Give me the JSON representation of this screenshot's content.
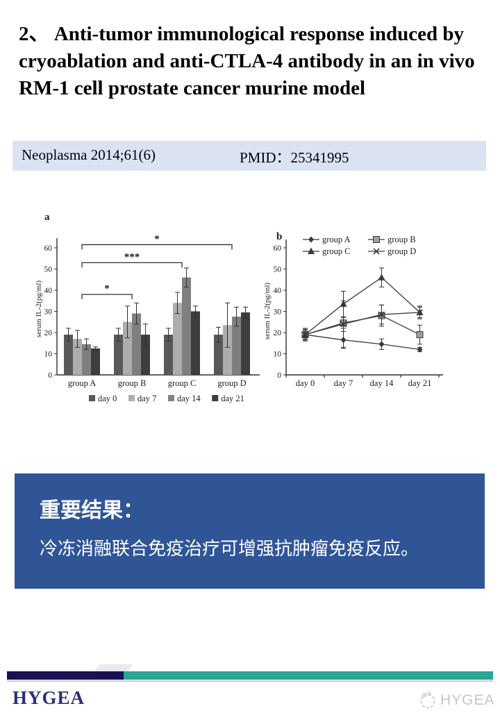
{
  "title": "2、 Anti-tumor immunological response induced by cryoablation and anti-CTLA-4 antibody in an in vivo RM-1 cell prostate cancer murine model",
  "banner": {
    "journal": "Neoplasma 2014;61(6)",
    "pmid": "PMID：25341995"
  },
  "results": {
    "heading": "重要结果：",
    "body": "冷冻消融联合免疫治疗可增强抗肿瘤免疫反应。"
  },
  "footer": {
    "logo": "HYGEA",
    "watermark": "HYGEA"
  },
  "colors": {
    "banner_bg": "#dbe3f3",
    "results_bg": "#2f5597",
    "footer_navy": "#181254",
    "footer_teal": "#2ba596",
    "logo_navy": "#283273",
    "watermark_gray": "#c6c6c6"
  },
  "chart_data": [
    {
      "type": "bar",
      "panel_label": "a",
      "categories": [
        "group A",
        "group B",
        "group C",
        "group D"
      ],
      "series": [
        {
          "name": "day 0",
          "color": "#595959",
          "values": [
            19,
            19,
            19,
            19
          ],
          "errors": [
            3,
            3,
            3,
            3.5
          ]
        },
        {
          "name": "day 7",
          "color": "#adadad",
          "values": [
            17,
            25,
            34,
            23.5
          ],
          "errors": [
            4,
            7.5,
            5,
            10.5
          ]
        },
        {
          "name": "day 14",
          "color": "#7f7f7f",
          "values": [
            14.5,
            29,
            46,
            27.5
          ],
          "errors": [
            2.5,
            5,
            4.5,
            4.5
          ]
        },
        {
          "name": "day 21",
          "color": "#3d3d3d",
          "values": [
            12.5,
            19,
            30,
            29.5
          ],
          "errors": [
            0.7,
            5,
            2.5,
            2.5
          ]
        }
      ],
      "xlabel": "",
      "ylabel": "serum IL-2(pg/ml)",
      "ylim": [
        0,
        60
      ],
      "ytick": 10,
      "legend_position": "bottom",
      "significance": [
        {
          "from": 0,
          "to": 1,
          "y": 38,
          "label": "*"
        },
        {
          "from": 0,
          "to": 2,
          "y": 53,
          "label": "***"
        },
        {
          "from": 0,
          "to": 3,
          "y": 61.5,
          "label": "*"
        }
      ]
    },
    {
      "type": "line",
      "panel_label": "b",
      "x": [
        "day 0",
        "day 7",
        "day 14",
        "day 21"
      ],
      "series": [
        {
          "name": "group A",
          "marker": "diamond",
          "values": [
            19,
            16.5,
            14.5,
            12
          ],
          "errors": [
            3,
            4,
            2.5,
            1
          ]
        },
        {
          "name": "group B",
          "marker": "square",
          "values": [
            19,
            24.5,
            28,
            19
          ],
          "errors": [
            2.5,
            2.5,
            5,
            4.5
          ]
        },
        {
          "name": "group C",
          "marker": "triangle",
          "values": [
            19,
            33.5,
            46,
            29.5
          ],
          "errors": [
            2.5,
            6,
            4.5,
            3
          ]
        },
        {
          "name": "group D",
          "marker": "x",
          "values": [
            19,
            24,
            28.5,
            29.5
          ],
          "errors": [
            2,
            11,
            4.5,
            2.5
          ]
        }
      ],
      "xlabel": "",
      "ylabel": "serum IL-2(pg/ml)",
      "ylim": [
        0,
        60
      ],
      "ytick": 10,
      "legend_position": "top"
    }
  ]
}
